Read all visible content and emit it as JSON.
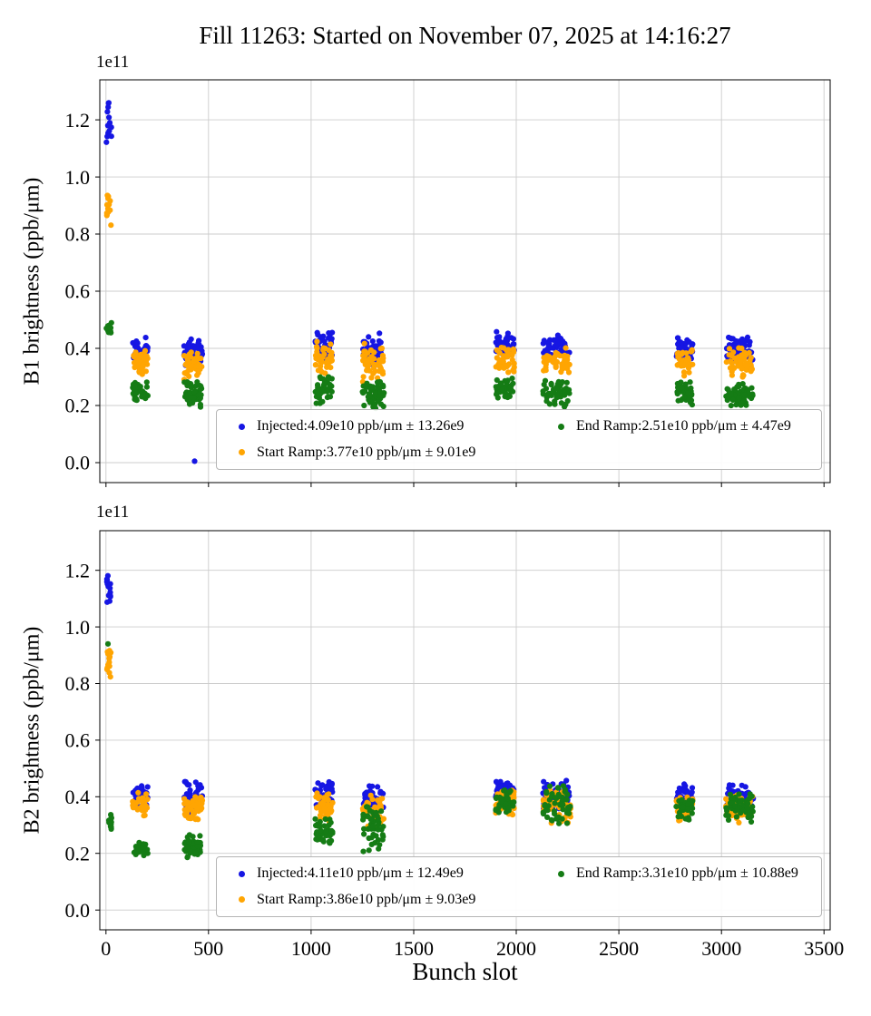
{
  "figure": {
    "title": "Fill 11263: Started on November 07, 2025 at 14:16:27",
    "xlabel": "Bunch slot"
  },
  "series_meta": {
    "injected": {
      "name": "Injected",
      "color": "#1616e3"
    },
    "start_ramp": {
      "name": "Start Ramp",
      "color": "#ffa502"
    },
    "end_ramp": {
      "name": "End Ramp",
      "color": "#157c15"
    }
  },
  "chart_data": [
    {
      "type": "scatter",
      "ylabel": "B1 brightness (ppb/μm)",
      "y_offset_label": "1e11",
      "xlim": [
        -30,
        3530
      ],
      "ylim": [
        -0.07,
        1.34
      ],
      "xticks": [
        0,
        500,
        1000,
        1500,
        2000,
        2500,
        3000,
        3500
      ],
      "yticks": [
        0.0,
        0.2,
        0.4,
        0.6,
        0.8,
        1.0,
        1.2
      ],
      "show_xticklabels": false,
      "grid": true,
      "legend": [
        {
          "series": "injected",
          "label": "Injected:4.09e10 ppb/μm ± 13.26e9"
        },
        {
          "series": "start_ramp",
          "label": "Start Ramp:3.77e10 ppb/μm ± 9.01e9"
        },
        {
          "series": "end_ramp",
          "label": "End Ramp:2.51e10 ppb/μm ± 4.47e9"
        }
      ],
      "clusters": [
        {
          "x": [
            2,
            28
          ],
          "n": 14,
          "injected": [
            1.08,
            1.28
          ],
          "start_ramp": [
            0.79,
            0.96
          ],
          "end_ramp": [
            0.44,
            0.5
          ]
        },
        {
          "x": [
            130,
            205
          ],
          "n": 40,
          "injected": [
            0.34,
            0.44
          ],
          "start_ramp": [
            0.3,
            0.4
          ],
          "end_ramp": [
            0.21,
            0.3
          ]
        },
        {
          "x": [
            380,
            470
          ],
          "n": 48,
          "injected": [
            0.33,
            0.44
          ],
          "start_ramp": [
            0.29,
            0.4
          ],
          "end_ramp": [
            0.19,
            0.29
          ]
        },
        {
          "x": [
            1020,
            1105
          ],
          "n": 44,
          "injected": [
            0.36,
            0.47
          ],
          "start_ramp": [
            0.3,
            0.43
          ],
          "end_ramp": [
            0.2,
            0.31
          ]
        },
        {
          "x": [
            1250,
            1355
          ],
          "n": 48,
          "injected": [
            0.33,
            0.46
          ],
          "start_ramp": [
            0.28,
            0.42
          ],
          "end_ramp": [
            0.18,
            0.3
          ]
        },
        {
          "x": [
            1900,
            1990
          ],
          "n": 40,
          "injected": [
            0.36,
            0.46
          ],
          "start_ramp": [
            0.31,
            0.42
          ],
          "end_ramp": [
            0.21,
            0.3
          ]
        },
        {
          "x": [
            2130,
            2260
          ],
          "n": 48,
          "injected": [
            0.35,
            0.45
          ],
          "start_ramp": [
            0.3,
            0.41
          ],
          "end_ramp": [
            0.18,
            0.3
          ]
        },
        {
          "x": [
            2780,
            2860
          ],
          "n": 36,
          "injected": [
            0.35,
            0.44
          ],
          "start_ramp": [
            0.3,
            0.4
          ],
          "end_ramp": [
            0.2,
            0.29
          ]
        },
        {
          "x": [
            3020,
            3155
          ],
          "n": 52,
          "injected": [
            0.34,
            0.45
          ],
          "start_ramp": [
            0.29,
            0.42
          ],
          "end_ramp": [
            0.19,
            0.28
          ]
        }
      ],
      "outliers": [
        {
          "series": "injected",
          "x": 432,
          "y": 0.005
        }
      ]
    },
    {
      "type": "scatter",
      "ylabel": "B2 brightness (ppb/μm)",
      "y_offset_label": "1e11",
      "xlim": [
        -30,
        3530
      ],
      "ylim": [
        -0.07,
        1.34
      ],
      "xticks": [
        0,
        500,
        1000,
        1500,
        2000,
        2500,
        3000,
        3500
      ],
      "yticks": [
        0.0,
        0.2,
        0.4,
        0.6,
        0.8,
        1.0,
        1.2
      ],
      "show_xticklabels": true,
      "grid": true,
      "legend": [
        {
          "series": "injected",
          "label": "Injected:4.11e10 ppb/μm ± 12.49e9"
        },
        {
          "series": "start_ramp",
          "label": "Start Ramp:3.86e10 ppb/μm ± 9.03e9"
        },
        {
          "series": "end_ramp",
          "label": "End Ramp:3.31e10 ppb/μm ± 10.88e9"
        }
      ],
      "clusters": [
        {
          "x": [
            2,
            28
          ],
          "n": 14,
          "injected": [
            1.07,
            1.19
          ],
          "start_ramp": [
            0.8,
            0.95
          ],
          "end_ramp": [
            0.28,
            0.34
          ]
        },
        {
          "x": [
            130,
            205
          ],
          "n": 36,
          "injected": [
            0.36,
            0.45
          ],
          "start_ramp": [
            0.33,
            0.42
          ],
          "end_ramp": [
            0.19,
            0.24
          ]
        },
        {
          "x": [
            380,
            470
          ],
          "n": 52,
          "injected": [
            0.33,
            0.46
          ],
          "start_ramp": [
            0.3,
            0.42
          ],
          "end_ramp": [
            0.18,
            0.27
          ]
        },
        {
          "x": [
            1020,
            1105
          ],
          "n": 44,
          "injected": [
            0.36,
            0.46
          ],
          "start_ramp": [
            0.3,
            0.42
          ],
          "end_ramp": [
            0.23,
            0.33
          ]
        },
        {
          "x": [
            1250,
            1355
          ],
          "n": 48,
          "injected": [
            0.34,
            0.44
          ],
          "start_ramp": [
            0.29,
            0.41
          ],
          "end_ramp": [
            0.2,
            0.38
          ]
        },
        {
          "x": [
            1900,
            1990
          ],
          "n": 40,
          "injected": [
            0.38,
            0.47
          ],
          "start_ramp": [
            0.33,
            0.43
          ],
          "end_ramp": [
            0.33,
            0.44
          ]
        },
        {
          "x": [
            2130,
            2265
          ],
          "n": 52,
          "injected": [
            0.35,
            0.46
          ],
          "start_ramp": [
            0.3,
            0.43
          ],
          "end_ramp": [
            0.29,
            0.46
          ]
        },
        {
          "x": [
            2780,
            2860
          ],
          "n": 36,
          "injected": [
            0.36,
            0.45
          ],
          "start_ramp": [
            0.31,
            0.41
          ],
          "end_ramp": [
            0.31,
            0.42
          ]
        },
        {
          "x": [
            3020,
            3155
          ],
          "n": 52,
          "injected": [
            0.35,
            0.45
          ],
          "start_ramp": [
            0.3,
            0.41
          ],
          "end_ramp": [
            0.31,
            0.42
          ]
        }
      ],
      "outliers": [
        {
          "series": "end_ramp",
          "x": 10,
          "y": 0.94
        }
      ]
    }
  ]
}
